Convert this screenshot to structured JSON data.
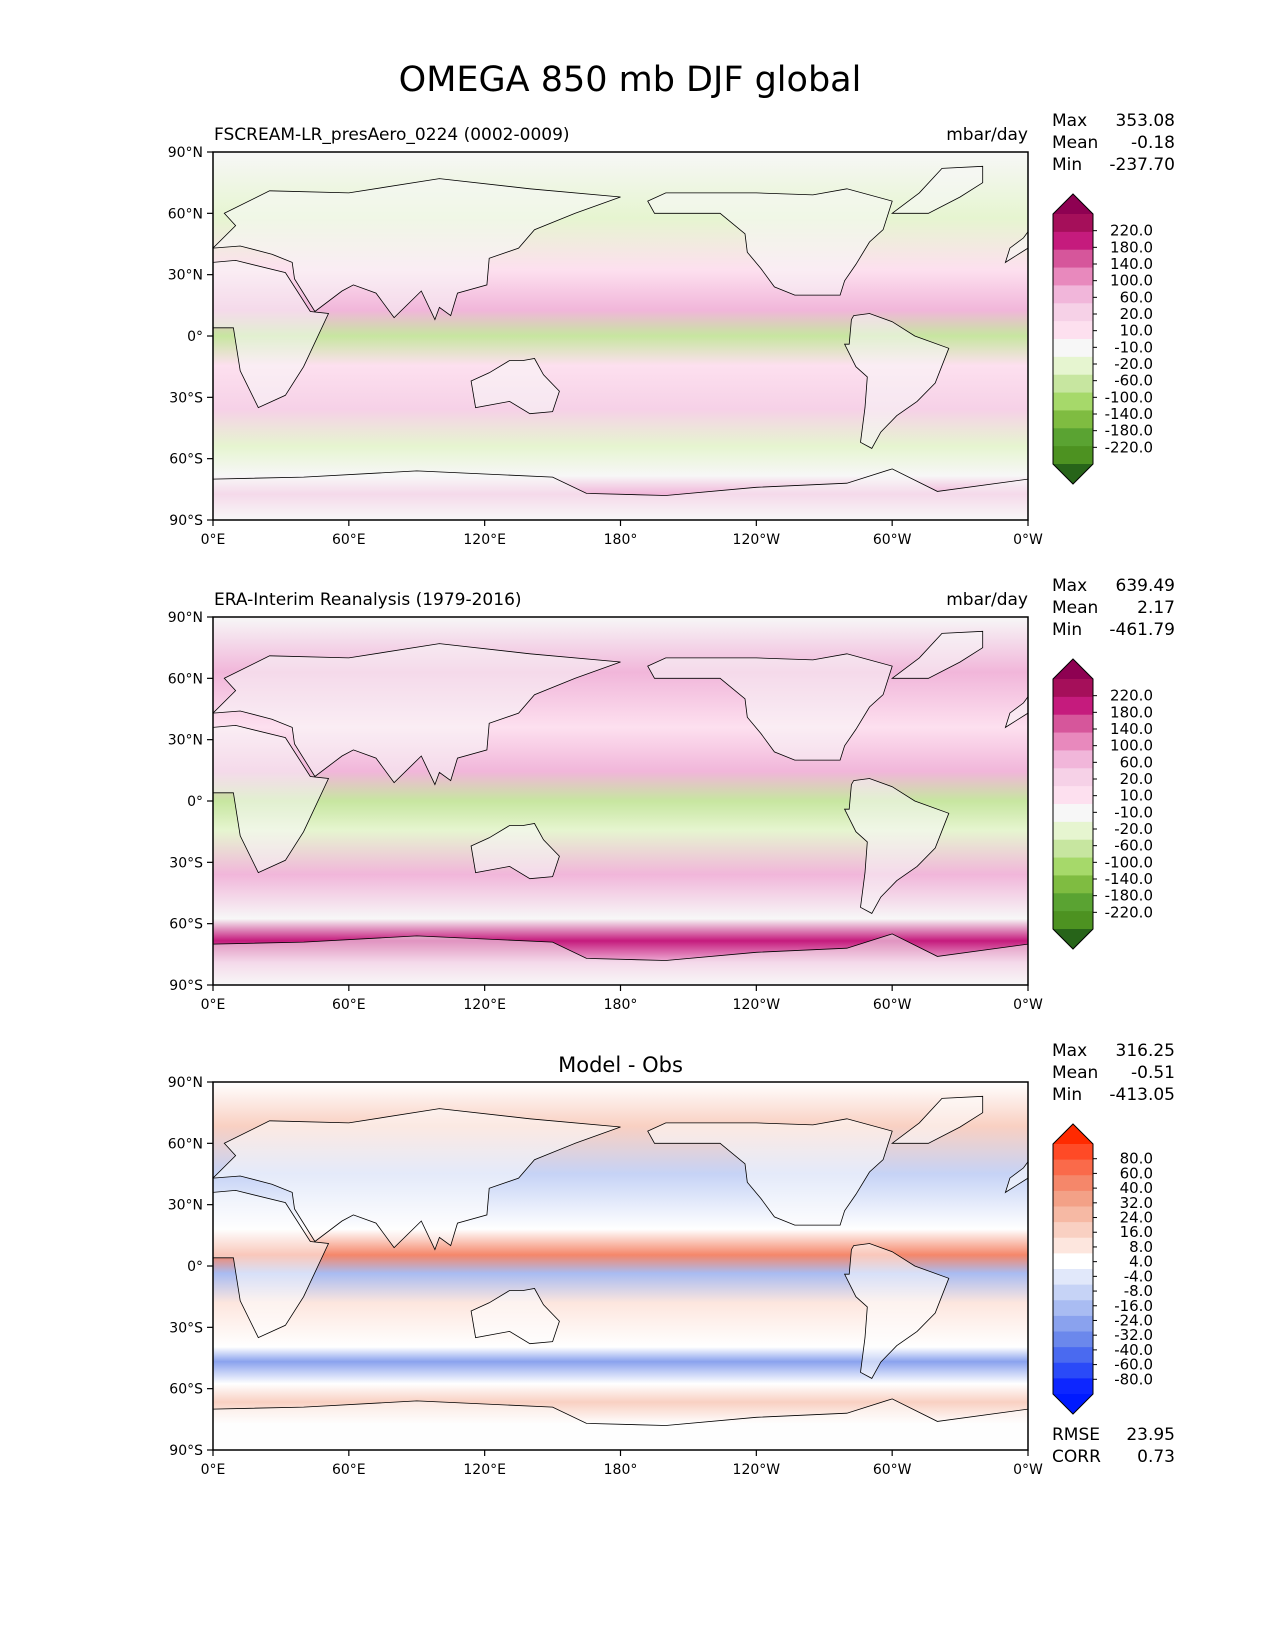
{
  "title": "OMEGA 850 mb DJF global",
  "panels": [
    {
      "id": "model",
      "left_title": "FSCREAM-LR_presAero_0224 (0002-0009)",
      "center_title": "",
      "units": "mbar/day",
      "stats": [
        {
          "label": "Max",
          "value": "353.08"
        },
        {
          "label": "Mean",
          "value": "-0.18"
        },
        {
          "label": "Min",
          "value": "-237.70"
        }
      ],
      "colorbar_labels": [
        "220.0",
        "180.0",
        "140.0",
        "100.0",
        "60.0",
        "20.0",
        "10.0",
        "-10.0",
        "-20.0",
        "-60.0",
        "-100.0",
        "-140.0",
        "-180.0",
        "-220.0"
      ],
      "colorbar_colors": [
        "#8e0152",
        "#a50f5a",
        "#c51b7d",
        "#d6569b",
        "#e889bd",
        "#f1b6da",
        "#f6d1e7",
        "#fde0ef",
        "#f7f7f7",
        "#e6f5d0",
        "#c7e6a0",
        "#a6d96a",
        "#7fbc41",
        "#5aa332",
        "#4d9221",
        "#276419"
      ],
      "bottom_stats": []
    },
    {
      "id": "obs",
      "left_title": "ERA-Interim Reanalysis (1979-2016)",
      "center_title": "",
      "units": "mbar/day",
      "stats": [
        {
          "label": "Max",
          "value": "639.49"
        },
        {
          "label": "Mean",
          "value": "2.17"
        },
        {
          "label": "Min",
          "value": "-461.79"
        }
      ],
      "colorbar_labels": [
        "220.0",
        "180.0",
        "140.0",
        "100.0",
        "60.0",
        "20.0",
        "10.0",
        "-10.0",
        "-20.0",
        "-60.0",
        "-100.0",
        "-140.0",
        "-180.0",
        "-220.0"
      ],
      "colorbar_colors": [
        "#8e0152",
        "#a50f5a",
        "#c51b7d",
        "#d6569b",
        "#e889bd",
        "#f1b6da",
        "#f6d1e7",
        "#fde0ef",
        "#f7f7f7",
        "#e6f5d0",
        "#c7e6a0",
        "#a6d96a",
        "#7fbc41",
        "#5aa332",
        "#4d9221",
        "#276419"
      ],
      "bottom_stats": []
    },
    {
      "id": "diff",
      "left_title": "",
      "center_title": "Model - Obs",
      "units": "",
      "stats": [
        {
          "label": "Max",
          "value": "316.25"
        },
        {
          "label": "Mean",
          "value": "-0.51"
        },
        {
          "label": "Min",
          "value": "-413.05"
        }
      ],
      "colorbar_labels": [
        "80.0",
        "60.0",
        "40.0",
        "32.0",
        "24.0",
        "16.0",
        "8.0",
        "4.0",
        "-4.0",
        "-8.0",
        "-16.0",
        "-24.0",
        "-32.0",
        "-40.0",
        "-60.0",
        "-80.0"
      ],
      "colorbar_colors": [
        "#ff2a00",
        "#ff4a26",
        "#fa6a4a",
        "#f5876a",
        "#f3a187",
        "#f6b9a4",
        "#f9d0c2",
        "#fde6de",
        "#ffffff",
        "#e1e8fa",
        "#c6d3f6",
        "#a9bcf2",
        "#8aa2ee",
        "#6b88ec",
        "#4a6af0",
        "#2a4af8",
        "#0d26ff",
        "#001aff"
      ],
      "bottom_stats": [
        {
          "label": "RMSE",
          "value": "23.95"
        },
        {
          "label": "CORR",
          "value": "0.73"
        }
      ]
    }
  ],
  "lat_ticks": [
    "90°N",
    "60°N",
    "30°N",
    "0°",
    "30°S",
    "60°S",
    "90°S"
  ],
  "lon_ticks": [
    "0°E",
    "60°E",
    "120°E",
    "180°",
    "120°W",
    "60°W",
    "0°W"
  ]
}
